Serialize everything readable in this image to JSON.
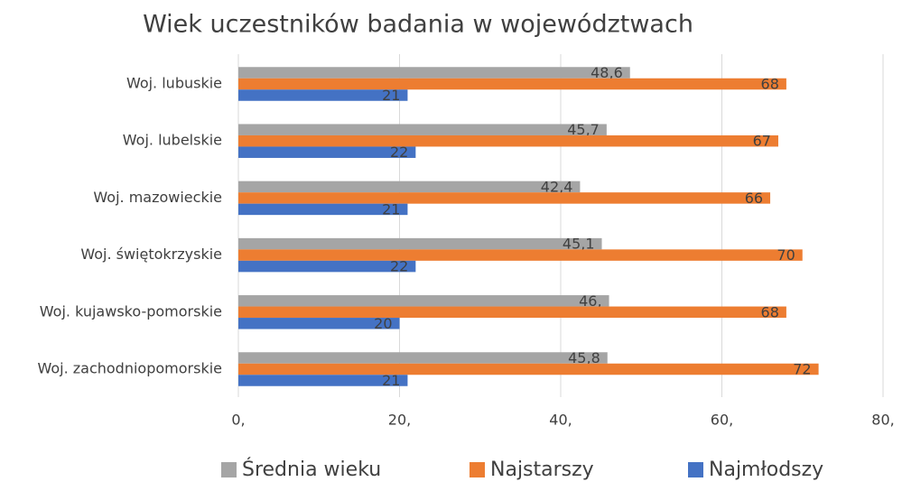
{
  "chart_data": {
    "type": "hbar",
    "title": "Wiek uczestników badania w województwach",
    "categories": [
      "Woj. lubuskie",
      "Woj. lubelskie",
      "Woj. mazowieckie",
      "Woj. świętokrzyskie",
      "Woj. kujawsko-pomorskie",
      "Woj. zachodniopomorskie"
    ],
    "series": [
      {
        "name": "Średnia wieku",
        "color": "#a5a5a5",
        "values": [
          48.6,
          45.7,
          42.4,
          45.1,
          46,
          45.8
        ],
        "value_labels": [
          "48,6",
          "45,7",
          "42,4",
          "45,1",
          "46,",
          "45,8"
        ]
      },
      {
        "name": "Najstarszy",
        "color": "#ed7d31",
        "values": [
          68,
          67,
          66,
          70,
          68,
          72
        ]
      },
      {
        "name": "Najmłodszy",
        "color": "#4472c4",
        "values": [
          21,
          22,
          21,
          22,
          20,
          21
        ]
      }
    ],
    "xlim": [
      0,
      80
    ],
    "xticks": [
      {
        "value": 0,
        "label": "0,"
      },
      {
        "value": 20,
        "label": "20,"
      },
      {
        "value": 40,
        "label": "40,"
      },
      {
        "value": 60,
        "label": "60,"
      },
      {
        "value": 80,
        "label": "80,"
      }
    ],
    "grid": true,
    "legend": "bottom"
  }
}
